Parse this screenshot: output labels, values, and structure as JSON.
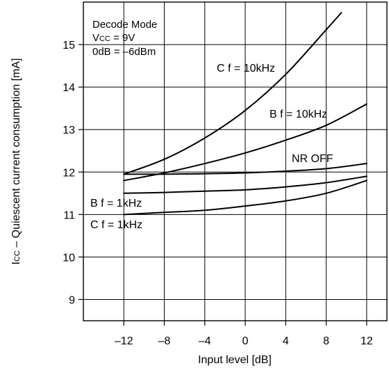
{
  "chart_data": {
    "type": "line",
    "title": "",
    "xlabel": "Input level [dB]",
    "ylabel": "Icc – Quiescent current consumption [mA]",
    "ylabel_parts": {
      "symbol_main": "I",
      "symbol_sub": "CC",
      "rest": " – Quiescent current consumption [mA]"
    },
    "xlim": [
      -16,
      14
    ],
    "ylim": [
      8.5,
      16
    ],
    "x_ticks": [
      -12,
      -8,
      -4,
      0,
      4,
      8,
      12
    ],
    "y_ticks": [
      9,
      10,
      11,
      12,
      13,
      14,
      15
    ],
    "grid": true,
    "conditions": {
      "line1": "Decode Mode",
      "line2_main": "V",
      "line2_sub": "CC",
      "line2_rest": " = 9V",
      "line3": "0dB = –6dBm"
    },
    "series": [
      {
        "name": "C f = 10kHz",
        "x": [
          -12,
          -8,
          -4,
          0,
          4,
          8,
          9.5
        ],
        "y": [
          11.95,
          12.3,
          12.8,
          13.45,
          14.3,
          15.35,
          15.75
        ]
      },
      {
        "name": "B f = 10kHz",
        "x": [
          -12,
          -8,
          -4,
          0,
          4,
          8,
          12
        ],
        "y": [
          11.8,
          11.98,
          12.2,
          12.45,
          12.75,
          13.1,
          13.6
        ]
      },
      {
        "name": "NR OFF",
        "x": [
          -12,
          -8,
          -4,
          0,
          4,
          8,
          12
        ],
        "y": [
          11.95,
          11.95,
          11.96,
          11.98,
          12.02,
          12.08,
          12.2
        ]
      },
      {
        "name": "B f = 1kHz",
        "x": [
          -12,
          -8,
          -4,
          0,
          4,
          8,
          12
        ],
        "y": [
          11.5,
          11.52,
          11.55,
          11.58,
          11.65,
          11.75,
          11.9
        ]
      },
      {
        "name": "C f = 1kHz",
        "x": [
          -12,
          -8,
          -4,
          0,
          4,
          8,
          12
        ],
        "y": [
          11.0,
          11.05,
          11.1,
          11.2,
          11.32,
          11.5,
          11.8
        ]
      }
    ]
  }
}
